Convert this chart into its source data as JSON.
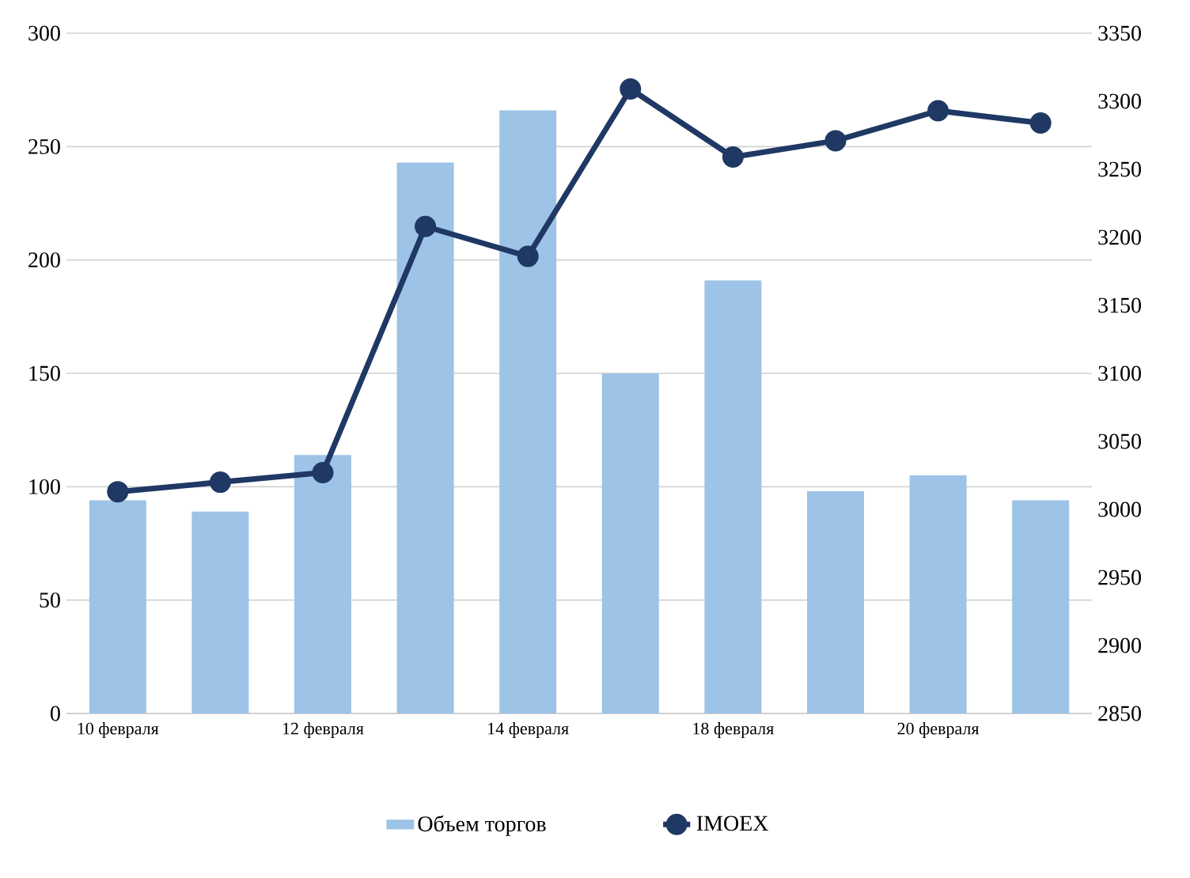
{
  "chart_data": {
    "type": "bar",
    "categories": [
      "10 февраля",
      null,
      "12 февраля",
      null,
      "14 февраля",
      null,
      "18 февраля",
      null,
      "20 февраля",
      null
    ],
    "series": [
      {
        "name": "Объем торгов",
        "color": "#9dc3e6",
        "values": [
          94,
          89,
          114,
          243,
          266,
          150,
          191,
          98,
          105,
          94
        ]
      },
      {
        "name": "IMOEX",
        "type": "line",
        "axis": "y2",
        "color": "#1f3864",
        "marker": "circle",
        "values": [
          3013,
          3020,
          3027,
          3208,
          3186,
          3309,
          3259,
          3271,
          3293,
          3284
        ]
      }
    ],
    "ylim": [
      0,
      300
    ],
    "yticks": [
      0,
      50,
      100,
      150,
      200,
      250,
      300
    ],
    "y2lim": [
      2850,
      3350
    ],
    "y2ticks": [
      2850,
      2900,
      2950,
      3000,
      3050,
      3100,
      3150,
      3200,
      3250,
      3300,
      3350
    ],
    "grid": "y",
    "legend": "bottom"
  }
}
